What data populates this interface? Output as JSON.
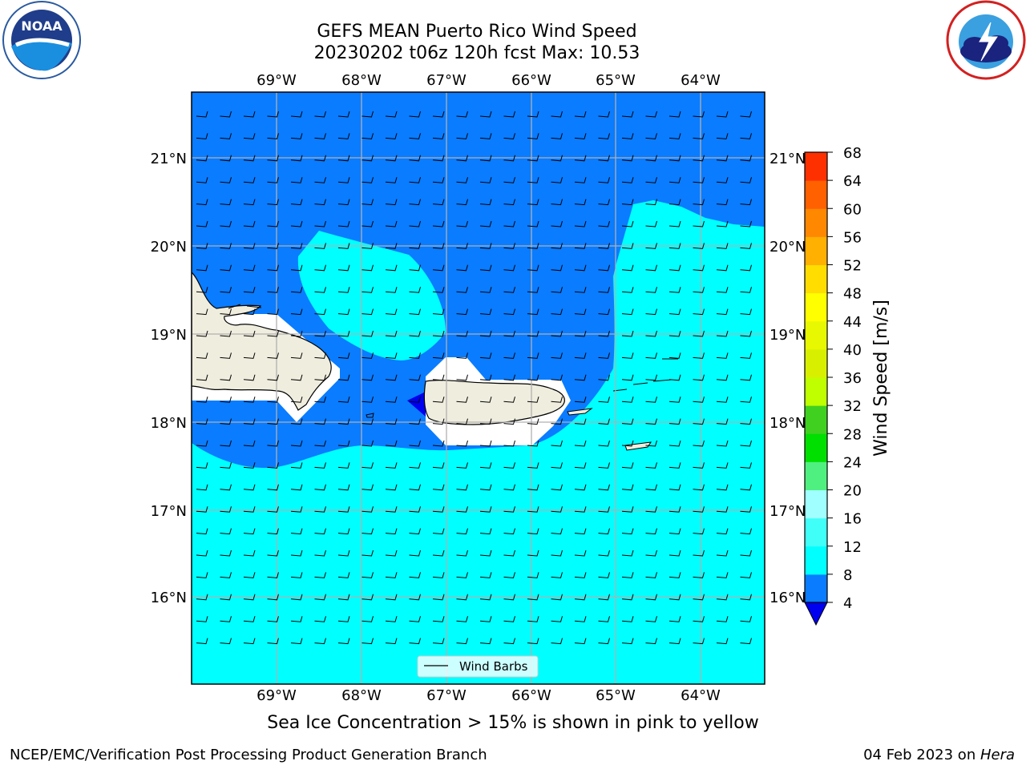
{
  "title": {
    "line1": "GEFS MEAN Puerto Rico Wind Speed",
    "line2": "20230202 t06z 120h fcst   Max: 10.53"
  },
  "logos": {
    "left": "NOAA",
    "left_ring_text": "NATIONAL OCEANIC AND ATMOSPHERIC ADMINISTRATION · U.S. DEPARTMENT OF COMMERCE",
    "right_ring_text": "NATIONAL WEATHER SERVICE"
  },
  "map": {
    "lon_labels": [
      "69°W",
      "68°W",
      "67°W",
      "66°W",
      "65°W",
      "64°W"
    ],
    "lat_labels": [
      "21°N",
      "20°N",
      "19°N",
      "18°N",
      "17°N",
      "16°N"
    ],
    "legend_label": "Wind Barbs",
    "colors": {
      "ocean_low": "#0a7cff",
      "ocean_mid": "#00ffff",
      "land": "#efedde",
      "grid": "#b0b0b0",
      "extend_low": "#0000f0"
    }
  },
  "colorbar": {
    "label": "Wind Speed [m/s]",
    "ticks": [
      4,
      8,
      12,
      16,
      20,
      24,
      28,
      32,
      36,
      40,
      44,
      48,
      52,
      56,
      60,
      64,
      68
    ],
    "colors": [
      "#0a7cff",
      "#00ffff",
      "#40fff8",
      "#a0ffff",
      "#50f080",
      "#00e000",
      "#40d020",
      "#c0ff00",
      "#d8f000",
      "#e8f800",
      "#ffff00",
      "#ffdd00",
      "#ffb000",
      "#ff8800",
      "#ff6000",
      "#ff3000",
      "#ff0000"
    ]
  },
  "note": "Sea Ice Concentration > 15% is shown in pink to yellow",
  "footer": {
    "left": "NCEP/EMC/Verification Post Processing Product Generation Branch",
    "right_prefix": "04 Feb 2023 on ",
    "right_italic": "Hera"
  }
}
